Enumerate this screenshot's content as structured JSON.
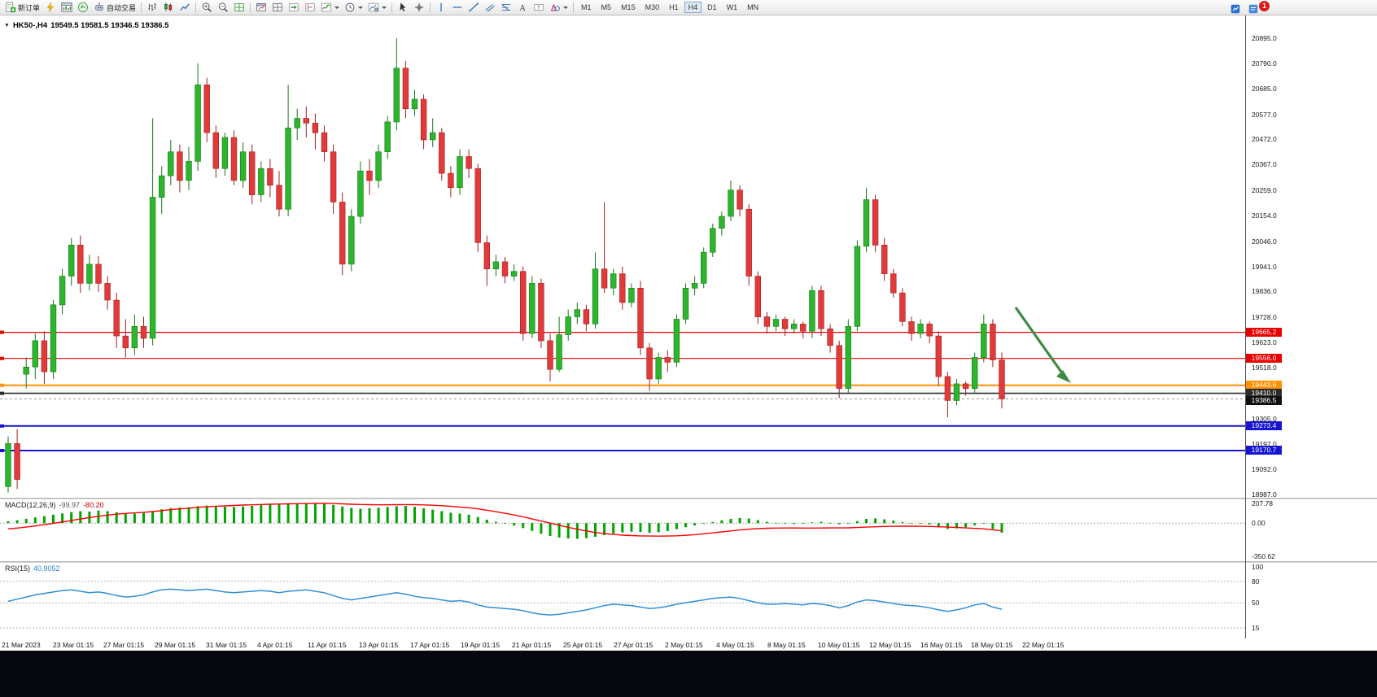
{
  "toolbar": {
    "items": [
      {
        "name": "new-order-button",
        "icon": "doc-plus",
        "label": "新订单"
      },
      {
        "name": "autotrade-bolt-icon",
        "icon": "bolt"
      },
      {
        "name": "chart-window-icon",
        "icon": "chart-window"
      },
      {
        "name": "profiles-icon",
        "icon": "profiles"
      },
      {
        "name": "auto-trading-button",
        "icon": "robot",
        "label": "自动交易"
      },
      {
        "sep": true
      },
      {
        "name": "bar-chart-type-button",
        "icon": "bars"
      },
      {
        "name": "candle-chart-type-button",
        "icon": "candles"
      },
      {
        "name": "line-chart-type-button",
        "icon": "linechart"
      },
      {
        "sep": true
      },
      {
        "name": "zoom-in-button",
        "icon": "zoom-in"
      },
      {
        "name": "zoom-out-button",
        "icon": "zoom-out"
      },
      {
        "name": "tile-windows-button",
        "icon": "grid"
      },
      {
        "sep": true
      },
      {
        "name": "new-chart-button",
        "icon": "win-chart"
      },
      {
        "name": "window-list-button",
        "icon": "win-list"
      },
      {
        "name": "auto-scroll-button",
        "icon": "autoscroll"
      },
      {
        "name": "chart-shift-button",
        "icon": "shift"
      },
      {
        "name": "indicators-button",
        "icon": "indicator",
        "caret": true
      },
      {
        "name": "periods-button",
        "icon": "clock",
        "caret": true
      },
      {
        "name": "templates-button",
        "icon": "template",
        "caret": true
      },
      {
        "sep": true
      },
      {
        "name": "cursor-tool-button",
        "icon": "cursor"
      },
      {
        "name": "crosshair-tool-button",
        "icon": "crosshair"
      },
      {
        "sep": true
      },
      {
        "name": "vline-tool-button",
        "icon": "vline"
      },
      {
        "name": "hline-tool-button",
        "icon": "hline"
      },
      {
        "name": "trendline-tool-button",
        "icon": "trend"
      },
      {
        "name": "channel-tool-button",
        "icon": "channel"
      },
      {
        "name": "fibonacci-tool-button",
        "icon": "fibo"
      },
      {
        "name": "text-tool-button",
        "icon": "textA"
      },
      {
        "name": "label-tool-button",
        "icon": "labelT"
      },
      {
        "name": "shapes-button",
        "icon": "shapes",
        "caret": true
      },
      {
        "sep": true
      }
    ],
    "timeframes": [
      "M1",
      "M5",
      "M15",
      "M30",
      "H1",
      "H4",
      "D1",
      "W1",
      "MN"
    ],
    "active_timeframe": "H4",
    "right_icons": [
      {
        "name": "market-watch-icon",
        "icon": "blue-news"
      },
      {
        "name": "alerts-icon",
        "icon": "blue-cal"
      }
    ],
    "notification_count": "1"
  },
  "chart": {
    "title": {
      "symbol": "HK50-,H4",
      "ohlc": "19549.5 19581.5 19346.5 19386.5"
    },
    "colors": {
      "bull": "#2eb52e",
      "bear": "#e23a3a",
      "bull_edge": "#157a15",
      "bear_edge": "#a02020",
      "bg": "#ffffff"
    },
    "levels": [
      {
        "price": 19665.2,
        "label": "19665.2",
        "color": "#e80000",
        "width": 1.2
      },
      {
        "price": 19556.0,
        "label": "19556.0",
        "color": "#e80000",
        "width": 1.2
      },
      {
        "price": 19443.6,
        "label": "19443.6",
        "color": "#ff9000",
        "width": 2
      },
      {
        "price": 19410.0,
        "label": "19410.0",
        "color": "#2b2b2b",
        "width": 1.6
      },
      {
        "price": 19273.4,
        "label": "19273.4",
        "color": "#1515cf",
        "width": 2
      },
      {
        "price": 19170.7,
        "label": "19170.7",
        "color": "#1515cf",
        "width": 2
      }
    ],
    "bid_tag": {
      "price": 19386.5,
      "label": "19386.5",
      "bg": "#101010"
    },
    "arrow": {
      "color": "#3d8b40"
    },
    "axis": {
      "price_min": 18987.0,
      "price_max": 20895.0,
      "price_labels": [
        "20895.0",
        "20790.0",
        "20685.0",
        "20577.0",
        "20472.0",
        "20367.0",
        "20259.0",
        "20154.0",
        "20046.0",
        "19941.0",
        "19836.0",
        "19728.0",
        "19623.0",
        "19518.0",
        "19410.0",
        "19305.0",
        "19197.0",
        "19092.0",
        "18987.0"
      ],
      "time_labels": [
        "21 Mar 2023",
        "23 Mar 01:15",
        "27 Mar 01:15",
        "29 Mar 01:15",
        "31 Mar 01:15",
        "4 Apr 01:15",
        "11 Apr 01:15",
        "13 Apr 01:15",
        "17 Apr 01:15",
        "19 Apr 01:15",
        "21 Apr 01:15",
        "25 Apr 01:15",
        "27 Apr 01:15",
        "2 May 01:15",
        "4 May 01:15",
        "8 May 01:15",
        "10 May 01:15",
        "12 May 01:15",
        "16 May 01:15",
        "18 May 01:15",
        "22 May 01:15"
      ]
    }
  },
  "chart_data": {
    "type": "candlestick",
    "symbol": "HK50-",
    "timeframe": "H4",
    "ohlc_current": {
      "open": 19549.5,
      "high": 19581.5,
      "low": 19346.5,
      "close": 19386.5
    },
    "candles": [
      [
        19020,
        19230,
        18995,
        19200
      ],
      [
        19200,
        19260,
        19010,
        19050
      ],
      [
        19490,
        19560,
        19430,
        19520
      ],
      [
        19520,
        19660,
        19470,
        19630
      ],
      [
        19630,
        19670,
        19450,
        19500
      ],
      [
        19500,
        19800,
        19470,
        19780
      ],
      [
        19780,
        19930,
        19740,
        19900
      ],
      [
        19900,
        20060,
        19860,
        20030
      ],
      [
        20030,
        20070,
        19830,
        19870
      ],
      [
        19870,
        19990,
        19840,
        19950
      ],
      [
        19950,
        19985,
        19835,
        19870
      ],
      [
        19870,
        19900,
        19760,
        19800
      ],
      [
        19800,
        19830,
        19600,
        19650
      ],
      [
        19650,
        19720,
        19560,
        19600
      ],
      [
        19600,
        19740,
        19570,
        19690
      ],
      [
        19690,
        19730,
        19600,
        19640
      ],
      [
        19640,
        20560,
        19610,
        20230
      ],
      [
        20230,
        20360,
        20160,
        20320
      ],
      [
        20320,
        20470,
        20280,
        20420
      ],
      [
        20420,
        20450,
        20250,
        20300
      ],
      [
        20300,
        20440,
        20260,
        20380
      ],
      [
        20380,
        20790,
        20340,
        20700
      ],
      [
        20700,
        20730,
        20460,
        20500
      ],
      [
        20500,
        20530,
        20310,
        20350
      ],
      [
        20350,
        20500,
        20320,
        20480
      ],
      [
        20480,
        20510,
        20280,
        20300
      ],
      [
        20300,
        20460,
        20270,
        20420
      ],
      [
        20420,
        20450,
        20200,
        20240
      ],
      [
        20240,
        20380,
        20210,
        20350
      ],
      [
        20350,
        20390,
        20230,
        20280
      ],
      [
        20280,
        20340,
        20150,
        20180
      ],
      [
        20180,
        20700,
        20150,
        20520
      ],
      [
        20520,
        20600,
        20470,
        20560
      ],
      [
        20560,
        20610,
        20480,
        20540
      ],
      [
        20540,
        20580,
        20430,
        20500
      ],
      [
        20500,
        20530,
        20380,
        20420
      ],
      [
        20420,
        20450,
        20160,
        20210
      ],
      [
        20210,
        20250,
        19905,
        19950
      ],
      [
        19950,
        20180,
        19920,
        20150
      ],
      [
        20150,
        20380,
        20120,
        20340
      ],
      [
        20340,
        20390,
        20240,
        20300
      ],
      [
        20300,
        20450,
        20270,
        20420
      ],
      [
        20420,
        20570,
        20390,
        20545
      ],
      [
        20545,
        20895,
        20510,
        20770
      ],
      [
        20770,
        20800,
        20560,
        20600
      ],
      [
        20600,
        20680,
        20570,
        20640
      ],
      [
        20640,
        20660,
        20430,
        20470
      ],
      [
        20470,
        20560,
        20440,
        20500
      ],
      [
        20500,
        20520,
        20300,
        20330
      ],
      [
        20330,
        20360,
        20230,
        20270
      ],
      [
        20270,
        20430,
        20240,
        20400
      ],
      [
        20400,
        20430,
        20310,
        20350
      ],
      [
        20350,
        20370,
        20000,
        20040
      ],
      [
        20040,
        20070,
        19860,
        19930
      ],
      [
        19930,
        19990,
        19900,
        19960
      ],
      [
        19960,
        19980,
        19870,
        19900
      ],
      [
        19900,
        19950,
        19880,
        19920
      ],
      [
        19920,
        19940,
        19630,
        19660
      ],
      [
        19660,
        19900,
        19640,
        19870
      ],
      [
        19870,
        19890,
        19600,
        19630
      ],
      [
        19630,
        19660,
        19460,
        19510
      ],
      [
        19510,
        19730,
        19500,
        19655
      ],
      [
        19655,
        19760,
        19630,
        19730
      ],
      [
        19730,
        19790,
        19700,
        19760
      ],
      [
        19760,
        19780,
        19670,
        19700
      ],
      [
        19700,
        20000,
        19680,
        19930
      ],
      [
        19930,
        20210,
        19830,
        19850
      ],
      [
        19850,
        19930,
        19820,
        19910
      ],
      [
        19910,
        19940,
        19760,
        19790
      ],
      [
        19790,
        19870,
        19770,
        19850
      ],
      [
        19850,
        19880,
        19570,
        19600
      ],
      [
        19600,
        19620,
        19420,
        19470
      ],
      [
        19470,
        19580,
        19450,
        19560
      ],
      [
        19560,
        19590,
        19500,
        19540
      ],
      [
        19540,
        19740,
        19520,
        19720
      ],
      [
        19720,
        19870,
        19700,
        19850
      ],
      [
        19850,
        19900,
        19820,
        19870
      ],
      [
        19870,
        20020,
        19850,
        20000
      ],
      [
        20000,
        20120,
        19980,
        20100
      ],
      [
        20100,
        20170,
        20070,
        20150
      ],
      [
        20150,
        20300,
        20130,
        20260
      ],
      [
        20260,
        20280,
        20150,
        20180
      ],
      [
        20180,
        20200,
        19860,
        19900
      ],
      [
        19900,
        19920,
        19700,
        19730
      ],
      [
        19730,
        19750,
        19660,
        19690
      ],
      [
        19690,
        19740,
        19670,
        19720
      ],
      [
        19720,
        19730,
        19650,
        19680
      ],
      [
        19680,
        19720,
        19660,
        19700
      ],
      [
        19700,
        19710,
        19640,
        19670
      ],
      [
        19670,
        19860,
        19640,
        19840
      ],
      [
        19840,
        19860,
        19650,
        19680
      ],
      [
        19680,
        19700,
        19580,
        19610
      ],
      [
        19610,
        19630,
        19390,
        19430
      ],
      [
        19430,
        19720,
        19410,
        19690
      ],
      [
        19690,
        20050,
        19670,
        20025
      ],
      [
        20025,
        20270,
        20000,
        20220
      ],
      [
        20220,
        20240,
        20000,
        20030
      ],
      [
        20030,
        20060,
        19880,
        19910
      ],
      [
        19910,
        19930,
        19810,
        19830
      ],
      [
        19830,
        19850,
        19690,
        19710
      ],
      [
        19710,
        19730,
        19630,
        19660
      ],
      [
        19660,
        19720,
        19640,
        19700
      ],
      [
        19700,
        19710,
        19620,
        19650
      ],
      [
        19650,
        19670,
        19440,
        19480
      ],
      [
        19480,
        19500,
        19310,
        19380
      ],
      [
        19380,
        19470,
        19360,
        19450
      ],
      [
        19450,
        19460,
        19400,
        19430
      ],
      [
        19430,
        19580,
        19410,
        19560
      ],
      [
        19560,
        19740,
        19540,
        19700
      ],
      [
        19700,
        19720,
        19520,
        19550
      ],
      [
        19549.5,
        19581.5,
        19346.5,
        19386.5
      ]
    ],
    "macd": {
      "label": "MACD(12,26,9)",
      "value_main": "-99.97",
      "value_signal": "-80.20",
      "scale": [
        "207.78",
        "0.00",
        "-350.62"
      ],
      "histogram_color": "#00a400",
      "signal_color": "#ff0000",
      "histogram": [
        18,
        30,
        46,
        60,
        74,
        88,
        102,
        116,
        126,
        122,
        132,
        126,
        114,
        104,
        100,
        108,
        128,
        146,
        158,
        164,
        168,
        178,
        184,
        178,
        172,
        170,
        176,
        182,
        188,
        194,
        198,
        203,
        206,
        207.78,
        206,
        202,
        192,
        176,
        160,
        152,
        156,
        162,
        170,
        178,
        182,
        172,
        156,
        142,
        126,
        110,
        100,
        88,
        64,
        36,
        14,
        -6,
        -26,
        -52,
        -82,
        -112,
        -136,
        -152,
        -162,
        -165,
        -158,
        -144,
        -126,
        -110,
        -98,
        -90,
        -94,
        -102,
        -96,
        -84,
        -64,
        -44,
        -24,
        -6,
        12,
        30,
        46,
        54,
        48,
        32,
        14,
        2,
        -6,
        -10,
        -4,
        8,
        14,
        4,
        -12,
        -2,
        22,
        44,
        50,
        40,
        26,
        12,
        2,
        -6,
        -14,
        -34,
        -62,
        -56,
        -44,
        -22,
        -8,
        -62,
        -99.97
      ],
      "signal": [
        -60,
        -52,
        -42,
        -30,
        -16,
        -2,
        12,
        28,
        44,
        58,
        72,
        84,
        94,
        102,
        108,
        114,
        122,
        132,
        142,
        150,
        158,
        166,
        172,
        178,
        182,
        186,
        190,
        193,
        196,
        199,
        201,
        203,
        205,
        206,
        207,
        207,
        206,
        203,
        199,
        196,
        194,
        193,
        193,
        194,
        195,
        194,
        192,
        188,
        183,
        177,
        170,
        162,
        150,
        136,
        120,
        104,
        86,
        66,
        44,
        22,
        0,
        -22,
        -44,
        -64,
        -82,
        -98,
        -110,
        -119,
        -126,
        -131,
        -134,
        -136,
        -137,
        -136,
        -133,
        -128,
        -121,
        -112,
        -102,
        -92,
        -82,
        -72,
        -64,
        -58,
        -54,
        -52,
        -51,
        -51,
        -52,
        -52,
        -51,
        -50,
        -50,
        -49,
        -46,
        -42,
        -38,
        -35,
        -33,
        -32,
        -32,
        -33,
        -35,
        -38,
        -42,
        -46,
        -50,
        -55,
        -60,
        -70,
        -80.2
      ]
    },
    "rsi": {
      "label": "RSI(15)",
      "value": "40.9052",
      "scale": [
        "100",
        "80",
        "50",
        "15"
      ],
      "color": "#2f8fd9",
      "values": [
        52,
        55,
        58,
        61,
        63,
        65,
        67,
        68,
        66,
        64,
        65,
        63,
        60,
        58,
        59,
        61,
        65,
        68,
        69,
        68,
        67,
        68,
        69,
        67,
        65,
        64,
        65,
        66,
        67,
        66,
        64,
        66,
        67,
        68,
        66,
        64,
        60,
        56,
        54,
        56,
        58,
        60,
        62,
        64,
        62,
        59,
        57,
        56,
        54,
        52,
        53,
        51,
        47,
        44,
        43,
        42,
        41,
        39,
        36,
        34,
        33,
        34,
        36,
        38,
        40,
        43,
        46,
        48,
        47,
        46,
        44,
        42,
        43,
        45,
        48,
        50,
        52,
        54,
        56,
        57,
        58,
        56,
        53,
        50,
        48,
        48,
        49,
        48,
        47,
        49,
        48,
        46,
        43,
        46,
        51,
        54,
        53,
        51,
        49,
        47,
        46,
        45,
        43,
        40,
        38,
        40,
        43,
        47,
        49,
        44,
        40.9
      ]
    }
  }
}
